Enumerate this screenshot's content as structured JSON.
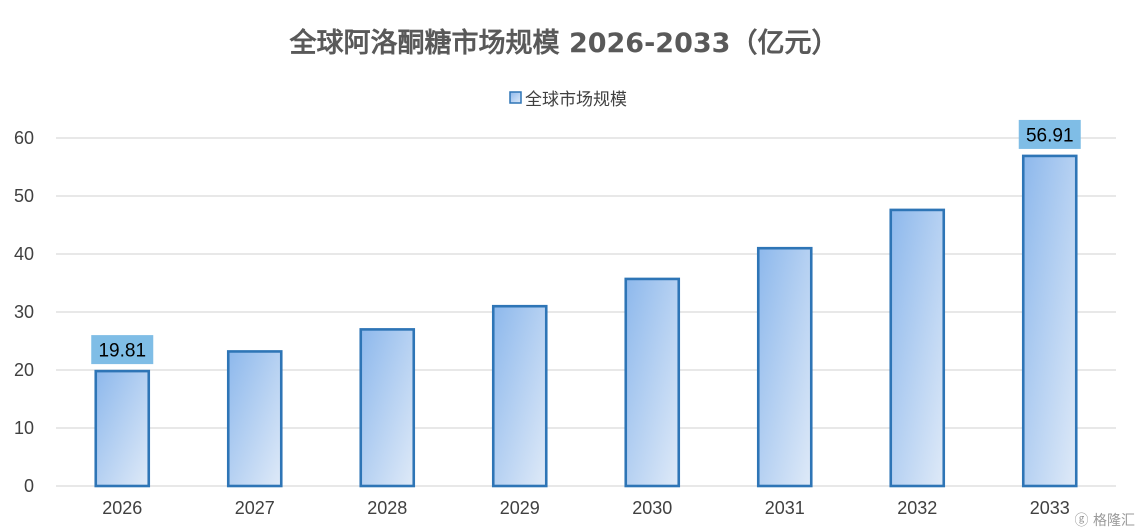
{
  "chart_data": {
    "type": "bar",
    "title": "全球阿洛酮糖市场规模 2026-2033（亿元）",
    "categories": [
      "2026",
      "2027",
      "2028",
      "2029",
      "2030",
      "2031",
      "2032",
      "2033"
    ],
    "series": [
      {
        "name": "全球市场规模",
        "values": [
          19.81,
          23.2,
          27.0,
          31.0,
          35.7,
          41.0,
          47.6,
          56.91
        ]
      }
    ],
    "data_labels": [
      {
        "index": 0,
        "text": "19.81"
      },
      {
        "index": 7,
        "text": "56.91"
      }
    ],
    "y_ticks": [
      "0",
      "10",
      "20",
      "30",
      "40",
      "50",
      "60"
    ],
    "ylim": [
      0,
      60
    ],
    "xlabel": "",
    "ylabel": "",
    "grid": true,
    "legend_position": "top-center",
    "colors": {
      "bar_border": "#2e75b6",
      "bar_fill_top": "#8db8ec",
      "bar_fill_bottom": "#dfeaf8",
      "label_box": "#7fbde6"
    }
  },
  "watermark": {
    "text": "格隆汇",
    "icon": "gelonghui-logo-icon"
  }
}
